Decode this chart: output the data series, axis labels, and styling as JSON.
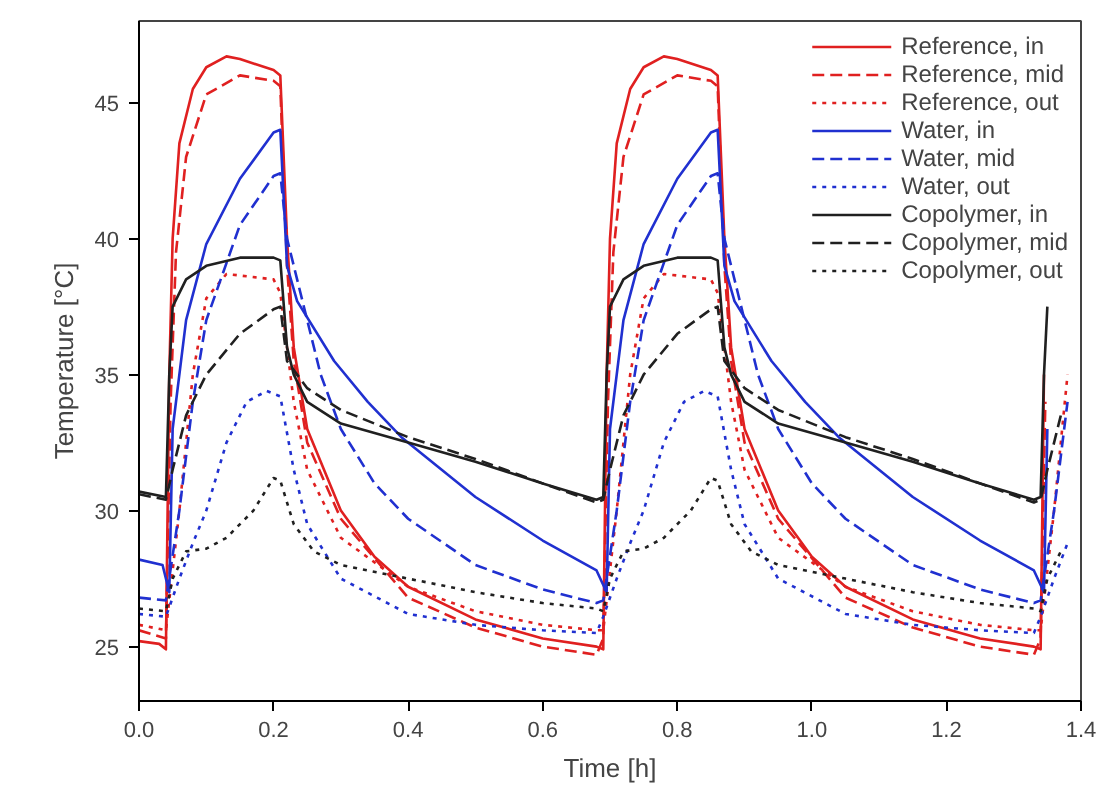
{
  "chart_data": {
    "type": "line",
    "xlabel": "Time [h]",
    "ylabel": "Temperature [°C]",
    "xlim": [
      0,
      1.4
    ],
    "ylim": [
      23,
      48
    ],
    "xticks": [
      {
        "value": 0,
        "label": "0.0"
      },
      0.2,
      0.4,
      0.6,
      0.8,
      {
        "value": 1,
        "label": "1.0"
      },
      1.2,
      1.4
    ],
    "yticks": [
      25,
      30,
      35,
      40,
      45
    ],
    "grid": false,
    "legend": "top right",
    "marker": "none",
    "series": [
      {
        "name": "Reference, in",
        "color": "#e02020",
        "line_style": "solid",
        "x": [
          0,
          0.03,
          0.04,
          0.045,
          0.05,
          0.06,
          0.08,
          0.1,
          0.13,
          0.15,
          0.2,
          0.21,
          0.22,
          0.23,
          0.25,
          0.3,
          0.35,
          0.4,
          0.5,
          0.6,
          0.68,
          0.69,
          0.695,
          0.7,
          0.71,
          0.73,
          0.75,
          0.78,
          0.8,
          0.85,
          0.86,
          0.87,
          0.88,
          0.9,
          0.95,
          1.0,
          1.05,
          1.15,
          1.25,
          1.33,
          1.34,
          1.345
        ],
        "values": [
          25.2,
          25.1,
          24.9,
          35,
          40,
          43.5,
          45.5,
          46.3,
          46.7,
          46.6,
          46.2,
          46.0,
          40,
          36,
          33,
          30,
          28.3,
          27.2,
          26,
          25.3,
          25.0,
          24.9,
          35,
          40,
          43.5,
          45.5,
          46.3,
          46.7,
          46.6,
          46.2,
          46.0,
          40,
          36,
          33,
          30,
          28.3,
          27.2,
          26,
          25.3,
          25.0,
          24.9,
          35
        ]
      },
      {
        "name": "Reference, mid",
        "color": "#e02020",
        "line_style": "dashed",
        "x": [
          0,
          0.04,
          0.047,
          0.055,
          0.07,
          0.1,
          0.15,
          0.2,
          0.21,
          0.22,
          0.23,
          0.25,
          0.3,
          0.4,
          0.5,
          0.6,
          0.68,
          0.69,
          0.697,
          0.705,
          0.72,
          0.75,
          0.8,
          0.85,
          0.86,
          0.87,
          0.88,
          0.9,
          0.95,
          1.05,
          1.15,
          1.25,
          1.33,
          1.34,
          1.347
        ],
        "values": [
          25.6,
          25.3,
          34,
          39.5,
          43,
          45.3,
          46,
          45.8,
          45.6,
          39,
          35.5,
          32.5,
          29.7,
          26.8,
          25.7,
          25.0,
          24.7,
          25.3,
          34,
          39.5,
          43,
          45.3,
          46,
          45.8,
          45.6,
          39,
          35.5,
          32.5,
          29.7,
          26.8,
          25.7,
          25.0,
          24.7,
          25.3,
          34
        ]
      },
      {
        "name": "Reference, out",
        "color": "#e02020",
        "line_style": "dotted",
        "x": [
          0,
          0.04,
          0.06,
          0.08,
          0.1,
          0.13,
          0.2,
          0.21,
          0.23,
          0.25,
          0.3,
          0.4,
          0.5,
          0.6,
          0.68,
          0.69,
          0.71,
          0.73,
          0.75,
          0.78,
          0.85,
          0.86,
          0.88,
          0.9,
          0.95,
          1.05,
          1.15,
          1.25,
          1.33,
          1.34,
          1.36,
          1.38
        ],
        "values": [
          25.8,
          25.6,
          30,
          35,
          37.8,
          38.7,
          38.5,
          38,
          34,
          31.5,
          29,
          27.2,
          26.3,
          25.8,
          25.6,
          25.6,
          30,
          35,
          37.8,
          38.7,
          38.5,
          38,
          34,
          31.5,
          29,
          27.2,
          26.3,
          25.8,
          25.6,
          25.6,
          30,
          35
        ]
      },
      {
        "name": "Water, in",
        "color": "#2030d0",
        "line_style": "solid",
        "x": [
          0,
          0.035,
          0.045,
          0.05,
          0.07,
          0.1,
          0.15,
          0.2,
          0.21,
          0.22,
          0.235,
          0.29,
          0.34,
          0.39,
          0.5,
          0.6,
          0.68,
          0.695,
          0.7,
          0.72,
          0.75,
          0.8,
          0.85,
          0.86,
          0.87,
          0.885,
          0.94,
          0.99,
          1.04,
          1.15,
          1.25,
          1.33,
          1.345,
          1.35
        ],
        "values": [
          28.2,
          28.0,
          27.0,
          33,
          37,
          39.8,
          42.2,
          43.9,
          44.0,
          39,
          37.7,
          35.5,
          34,
          32.7,
          30.5,
          28.9,
          27.8,
          27.0,
          33,
          37,
          39.8,
          42.2,
          43.9,
          44.0,
          39,
          37.7,
          35.5,
          34,
          32.7,
          30.5,
          28.9,
          27.8,
          27.0,
          33
        ]
      },
      {
        "name": "Water, mid",
        "color": "#2030d0",
        "line_style": "dashed",
        "x": [
          0,
          0.04,
          0.06,
          0.08,
          0.1,
          0.15,
          0.2,
          0.21,
          0.22,
          0.24,
          0.27,
          0.3,
          0.35,
          0.4,
          0.5,
          0.6,
          0.68,
          0.69,
          0.71,
          0.73,
          0.75,
          0.8,
          0.85,
          0.86,
          0.87,
          0.89,
          0.92,
          0.95,
          1.0,
          1.05,
          1.15,
          1.25,
          1.33,
          1.34,
          1.36,
          1.38
        ],
        "values": [
          26.8,
          26.7,
          30,
          34,
          37,
          40.5,
          42.3,
          42.4,
          40,
          38,
          35,
          33,
          31,
          29.7,
          28,
          27.1,
          26.6,
          26.7,
          30,
          34,
          37,
          40.5,
          42.3,
          42.4,
          40,
          38,
          35,
          33,
          31,
          29.7,
          28,
          27.1,
          26.6,
          26.7,
          30,
          34
        ]
      },
      {
        "name": "Water, out",
        "color": "#2030d0",
        "line_style": "dotted",
        "x": [
          0,
          0.04,
          0.06,
          0.08,
          0.1,
          0.13,
          0.16,
          0.19,
          0.21,
          0.23,
          0.25,
          0.3,
          0.4,
          0.5,
          0.6,
          0.68,
          0.69,
          0.71,
          0.73,
          0.75,
          0.78,
          0.81,
          0.84,
          0.86,
          0.88,
          0.9,
          0.95,
          1.05,
          1.15,
          1.25,
          1.33,
          1.34,
          1.36,
          1.38
        ],
        "values": [
          26.2,
          26.1,
          27.5,
          28.8,
          30,
          32.5,
          34,
          34.4,
          34.2,
          31.5,
          29.5,
          27.5,
          26.2,
          25.8,
          25.6,
          25.5,
          26.1,
          27.5,
          28.8,
          30,
          32.5,
          34,
          34.4,
          34.2,
          31.5,
          29.5,
          27.5,
          26.2,
          25.8,
          25.6,
          25.5,
          26.1,
          27.5,
          28.8
        ]
      },
      {
        "name": "Copolymer, in",
        "color": "#202020",
        "line_style": "solid",
        "x": [
          0,
          0.04,
          0.045,
          0.05,
          0.07,
          0.1,
          0.15,
          0.2,
          0.21,
          0.22,
          0.23,
          0.25,
          0.3,
          0.4,
          0.5,
          0.6,
          0.68,
          0.69,
          0.695,
          0.7,
          0.72,
          0.75,
          0.8,
          0.85,
          0.86,
          0.87,
          0.88,
          0.9,
          0.95,
          1.05,
          1.15,
          1.25,
          1.33,
          1.34,
          1.345,
          1.35
        ],
        "values": [
          30.7,
          30.5,
          35,
          37.5,
          38.5,
          39.0,
          39.3,
          39.3,
          39.2,
          36,
          35,
          34,
          33.2,
          32.5,
          31.8,
          31.0,
          30.4,
          30.5,
          35,
          37.5,
          38.5,
          39.0,
          39.3,
          39.3,
          39.2,
          36,
          35,
          34,
          33.2,
          32.5,
          31.8,
          31.0,
          30.4,
          30.5,
          35,
          37.5
        ]
      },
      {
        "name": "Copolymer, mid",
        "color": "#202020",
        "line_style": "dashed",
        "x": [
          0,
          0.04,
          0.05,
          0.07,
          0.1,
          0.15,
          0.2,
          0.21,
          0.22,
          0.25,
          0.3,
          0.4,
          0.5,
          0.6,
          0.68,
          0.69,
          0.7,
          0.72,
          0.75,
          0.8,
          0.85,
          0.86,
          0.87,
          0.9,
          0.95,
          1.05,
          1.15,
          1.25,
          1.33,
          1.34,
          1.35,
          1.37
        ],
        "values": [
          30.6,
          30.4,
          31.5,
          33.5,
          35,
          36.5,
          37.4,
          37.5,
          35.5,
          34.5,
          33.7,
          32.7,
          31.9,
          31.0,
          30.3,
          30.4,
          31.5,
          33.5,
          35,
          36.5,
          37.4,
          37.5,
          35.5,
          34.5,
          33.7,
          32.7,
          31.9,
          31.0,
          30.3,
          30.4,
          31.5,
          33.5
        ]
      },
      {
        "name": "Copolymer, out",
        "color": "#202020",
        "line_style": "dotted",
        "x": [
          0,
          0.04,
          0.05,
          0.07,
          0.1,
          0.13,
          0.17,
          0.2,
          0.21,
          0.23,
          0.26,
          0.3,
          0.4,
          0.5,
          0.6,
          0.68,
          0.69,
          0.7,
          0.72,
          0.75,
          0.78,
          0.82,
          0.85,
          0.86,
          0.88,
          0.91,
          0.95,
          1.05,
          1.15,
          1.25,
          1.33,
          1.34,
          1.35,
          1.37
        ],
        "values": [
          26.4,
          26.3,
          27.5,
          28.5,
          28.6,
          29.0,
          30.0,
          31.2,
          31.1,
          29.5,
          28.5,
          28.0,
          27.5,
          27.0,
          26.6,
          26.4,
          26.3,
          27.5,
          28.5,
          28.6,
          29.0,
          30.0,
          31.2,
          31.1,
          29.5,
          28.5,
          28.0,
          27.5,
          27.0,
          26.6,
          26.4,
          26.3,
          27.5,
          28.5
        ]
      }
    ]
  }
}
